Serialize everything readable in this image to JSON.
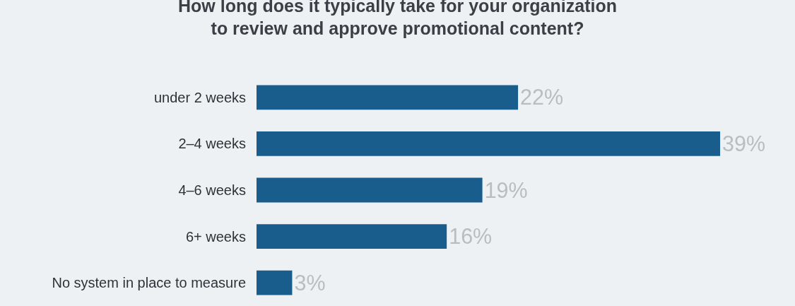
{
  "chart_data": {
    "type": "bar",
    "orientation": "horizontal",
    "title": "How long does it typically take for your organization\nto review and approve promotional content?",
    "categories": [
      "under 2 weeks",
      "2–4 weeks",
      "4–6 weeks",
      "6+ weeks",
      "No system in place to measure"
    ],
    "values": [
      22,
      39,
      19,
      16,
      3
    ],
    "value_labels": [
      "22%",
      "39%",
      "19%",
      "16%",
      "3%"
    ],
    "color": "#185d8c",
    "xlim": [
      0,
      45
    ],
    "grid": false,
    "legend": false
  }
}
